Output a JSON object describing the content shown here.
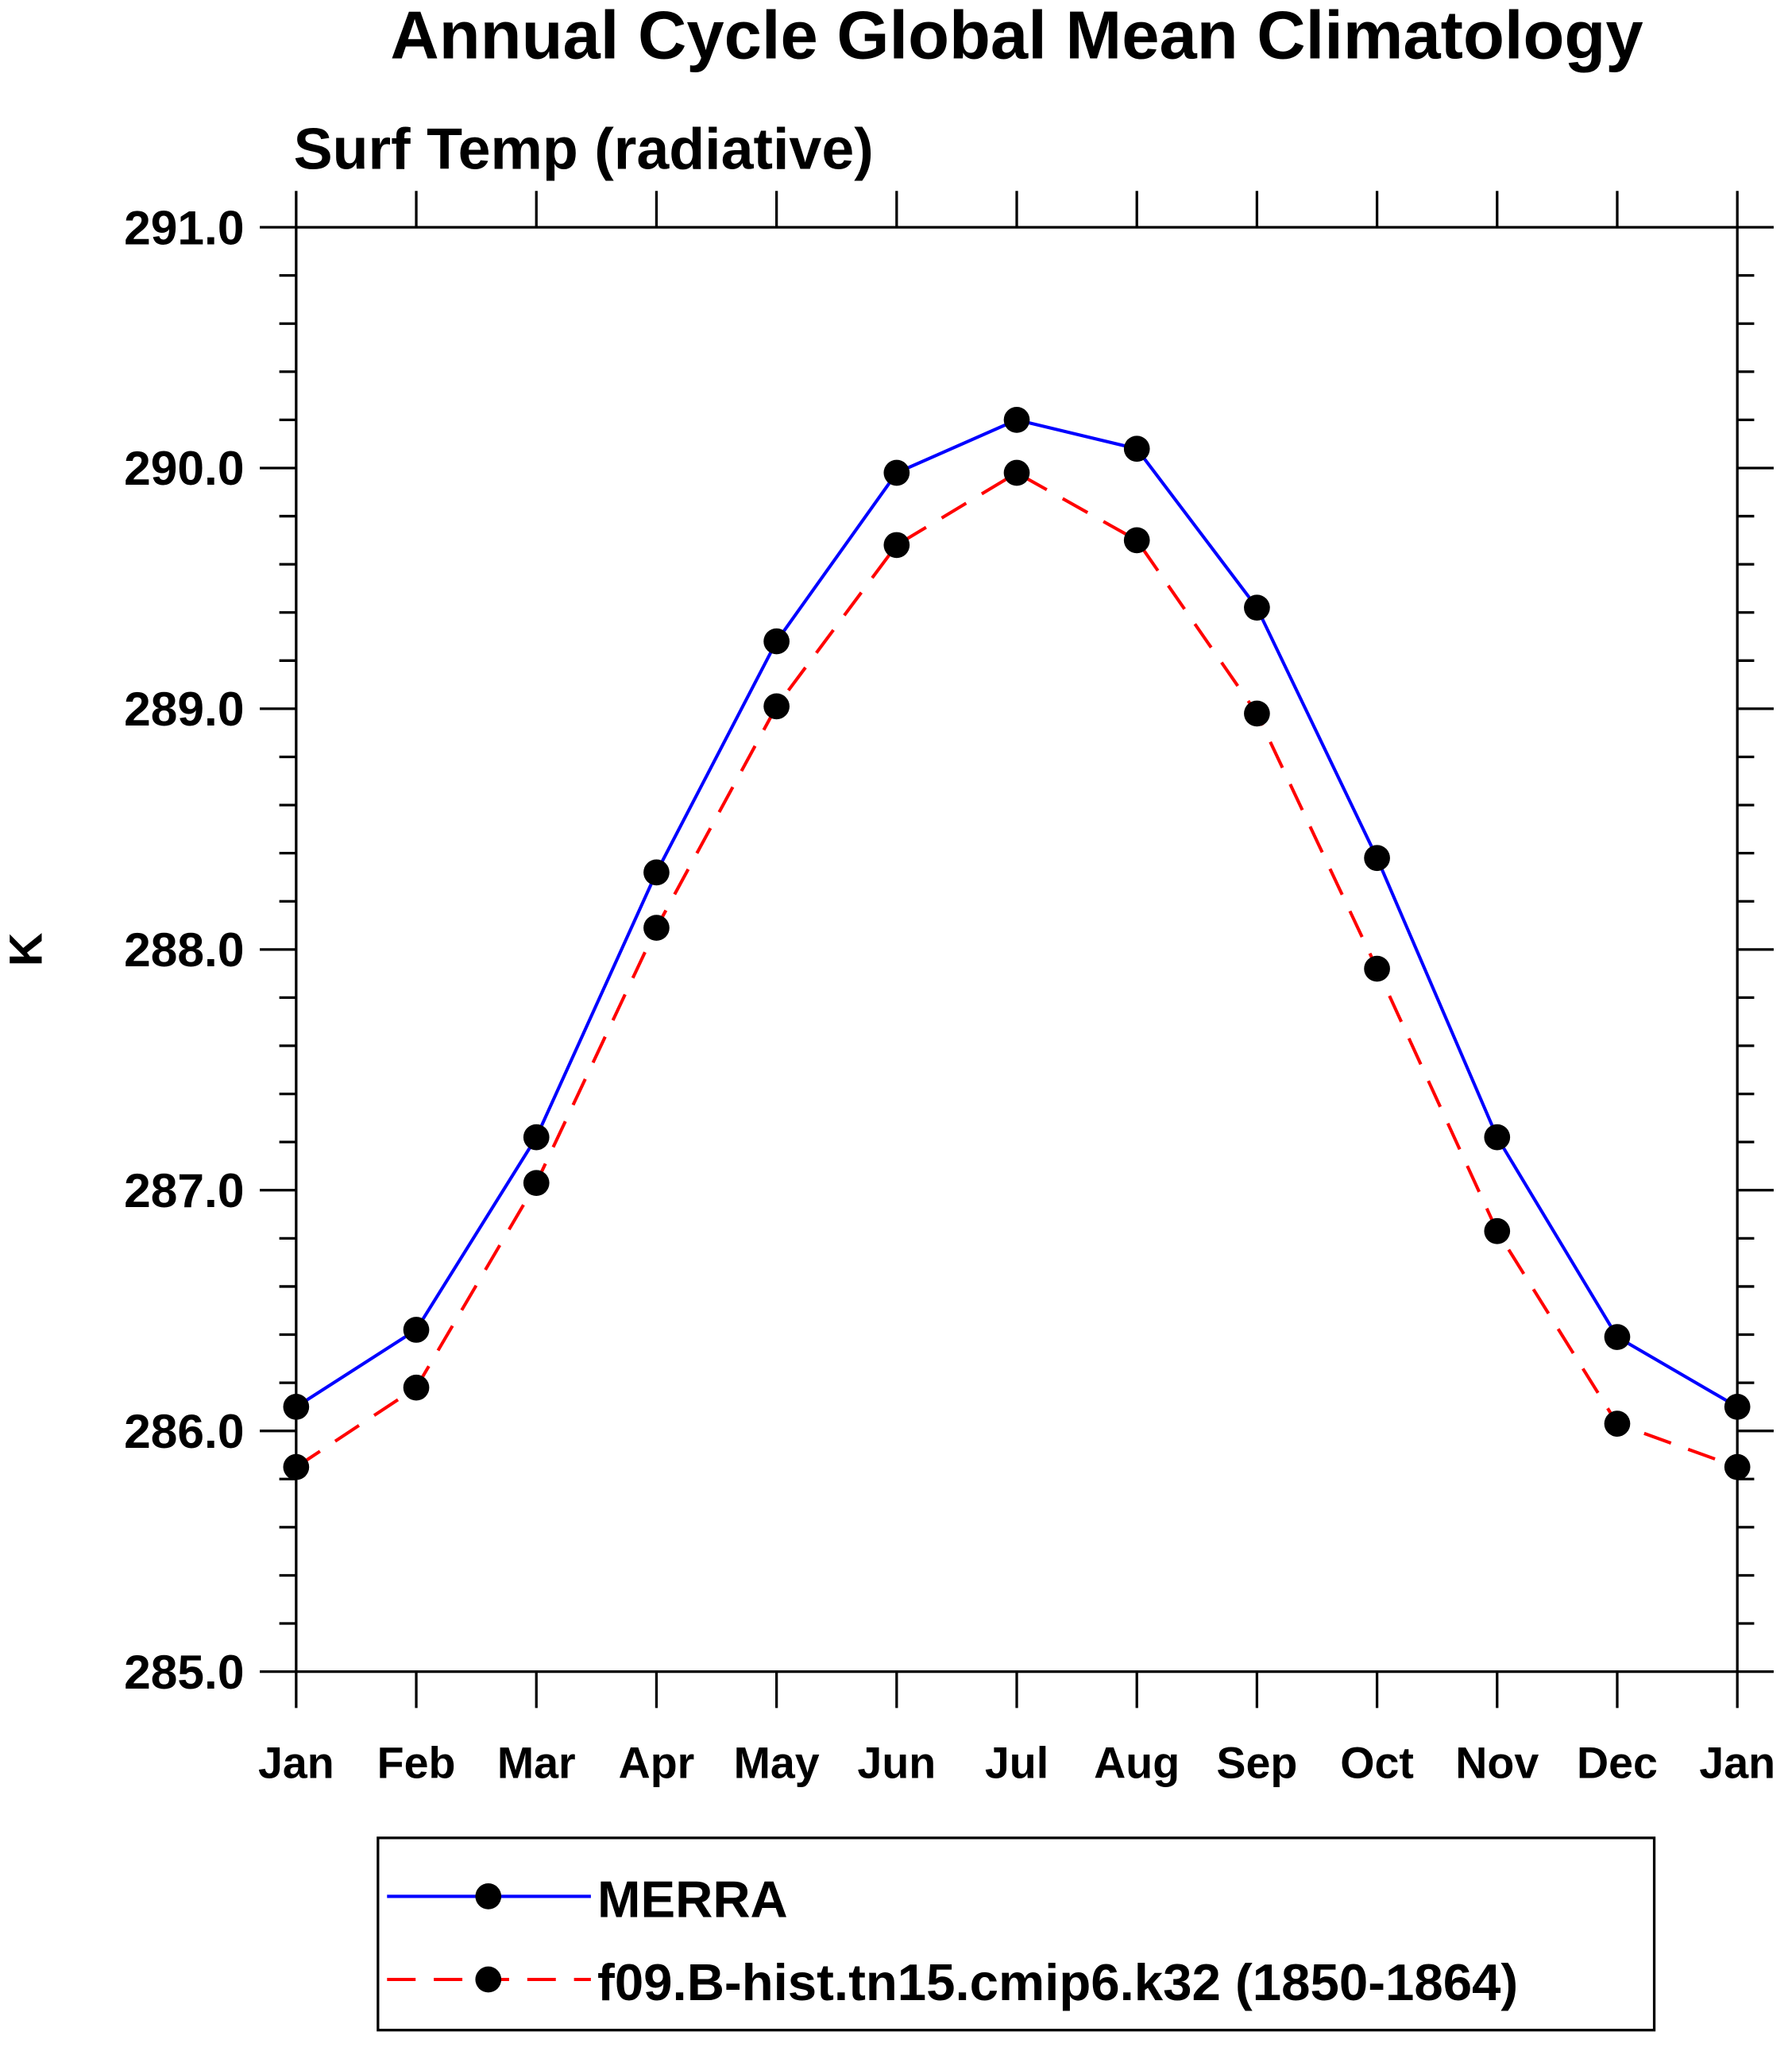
{
  "chart_data": {
    "type": "line",
    "title": "Annual Cycle Global Mean Climatology",
    "subtitle": "Surf Temp (radiative)",
    "xlabel": "",
    "ylabel": "K",
    "ylim": [
      285.0,
      291.0
    ],
    "yticks": [
      "285.0",
      "286.0",
      "287.0",
      "288.0",
      "289.0",
      "290.0",
      "291.0"
    ],
    "categories": [
      "Jan",
      "Feb",
      "Mar",
      "Apr",
      "May",
      "Jun",
      "Jul",
      "Aug",
      "Sep",
      "Oct",
      "Nov",
      "Dec",
      "Jan"
    ],
    "grid": false,
    "legend_placement": "bottom",
    "series": [
      {
        "name": "MERRA",
        "color": "#0000ff",
        "dash": "solid",
        "values": [
          286.1,
          286.42,
          287.22,
          288.32,
          289.28,
          289.98,
          290.2,
          290.08,
          289.42,
          288.38,
          287.22,
          286.39,
          286.1
        ]
      },
      {
        "name": "f09.B-hist.tn15.cmip6.k32 (1850-1864)",
        "color": "#ff0000",
        "dash": "dashed",
        "values": [
          285.85,
          286.18,
          287.03,
          288.09,
          289.01,
          289.68,
          289.98,
          289.7,
          288.98,
          287.92,
          286.83,
          286.03,
          285.85
        ]
      }
    ]
  }
}
